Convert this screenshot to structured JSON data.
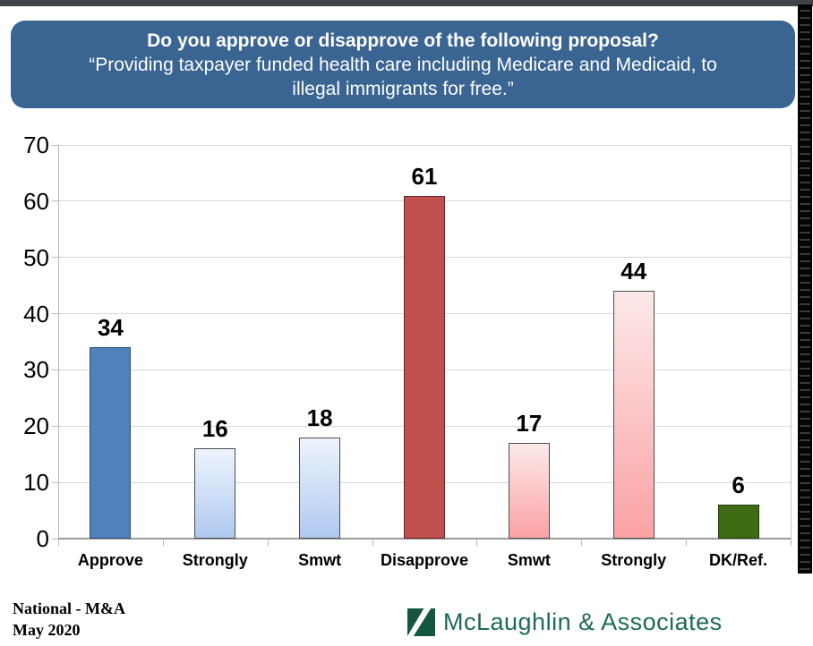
{
  "page": {
    "top_bar_color": "#3f4448",
    "background": "#ffffff"
  },
  "header": {
    "bg_color": "#3A6492",
    "text_color": "#ffffff",
    "title": "Do you approve or disapprove of the following proposal?",
    "quote_lines": [
      "“Providing taxpayer funded health care including Medicare and Medicaid, to",
      "illegal immigrants for free.”"
    ]
  },
  "chart_data": {
    "type": "bar",
    "categories": [
      "Approve",
      "Strongly",
      "Smwt",
      "Disapprove",
      "Smwt",
      "Strongly",
      "DK/Ref."
    ],
    "values": [
      34,
      16,
      18,
      61,
      17,
      44,
      6
    ],
    "title": "",
    "xlabel": "",
    "ylabel": "",
    "ylim": [
      0,
      70
    ],
    "ytick_step": 10,
    "grid": true,
    "legend": "none",
    "bar_styles": [
      {
        "fill": "#4F81BD",
        "border": "#2E4E71"
      },
      {
        "fill_top": "#EEF4FD",
        "fill_bottom": "#AFC9F0",
        "border": "#4d4d4d"
      },
      {
        "fill_top": "#EEF4FD",
        "fill_bottom": "#AFC9F0",
        "border": "#4d4d4d"
      },
      {
        "fill": "#C0504D",
        "border": "#632523"
      },
      {
        "fill_top": "#FCE9E9",
        "fill_bottom": "#FBA2A4",
        "border": "#4d4d4d"
      },
      {
        "fill_top": "#FCE9E9",
        "fill_bottom": "#FBA2A4",
        "border": "#4d4d4d"
      },
      {
        "fill": "#406B15",
        "border": "#23380b"
      }
    ]
  },
  "footer": {
    "line1": "National - M&A",
    "line2": "May 2020",
    "logo_text": "McLaughlin & Associates",
    "logo_color": "#1D6B54",
    "logo_mark_color": "#14573E"
  }
}
